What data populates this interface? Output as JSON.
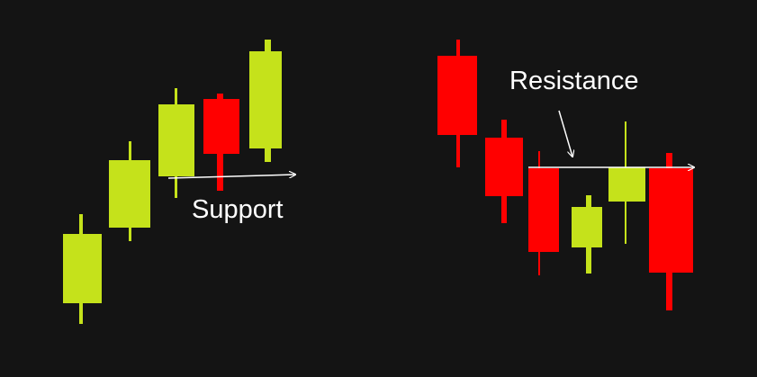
{
  "labels": {
    "support": "Support",
    "resistance": "Resistance"
  }
}
